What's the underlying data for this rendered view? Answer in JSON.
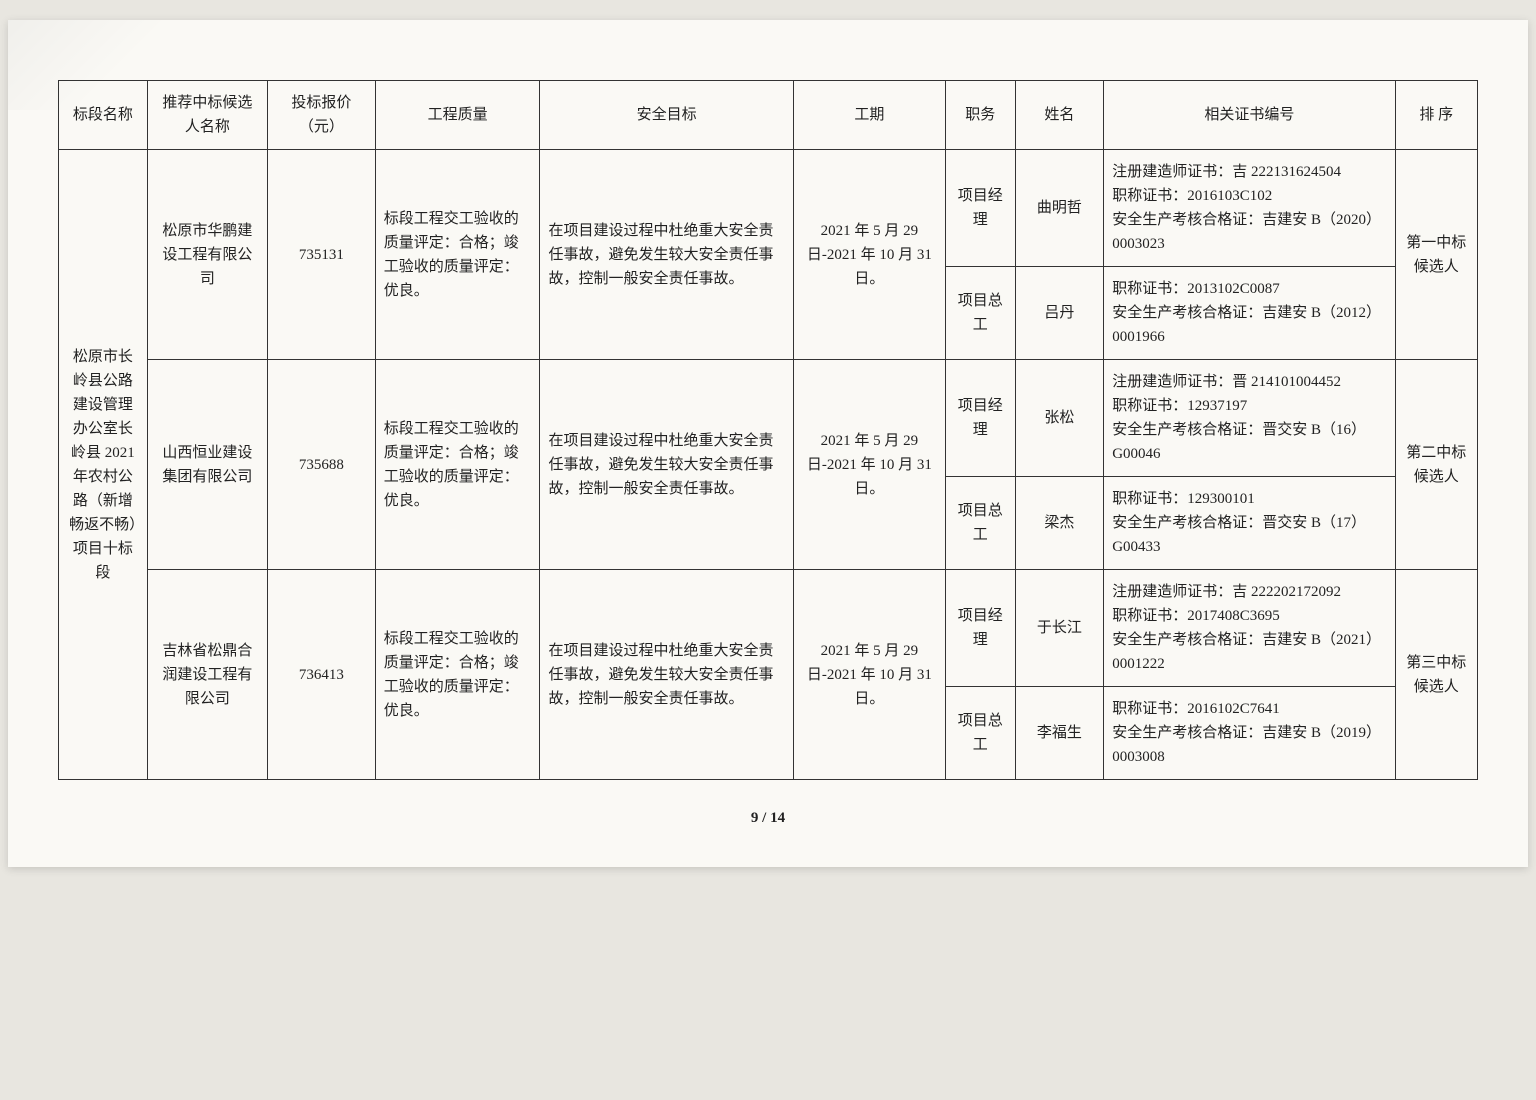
{
  "headers": {
    "section": "标段名称",
    "candidate": "推荐中标候选人名称",
    "price": "投标报价（元）",
    "quality": "工程质量",
    "safety": "安全目标",
    "period": "工期",
    "role": "职务",
    "name": "姓名",
    "cert": "相关证书编号",
    "rank": "排 序"
  },
  "section_name": "松原市长岭县公路建设管理办公室长岭县 2021 年农村公路（新增畅返不畅）项目十标段",
  "quality_text": "标段工程交工验收的质量评定：合格；竣工验收的质量评定：优良。",
  "safety_text": "在项目建设过程中杜绝重大安全责任事故，避免发生较大安全责任事故，控制一般安全责任事故。",
  "period_text": "2021 年 5 月 29 日-2021 年 10 月 31 日。",
  "role_pm": "项目经理",
  "role_ce": "项目总工",
  "candidates": [
    {
      "company": "松原市华鹏建设工程有限公司",
      "price": "735131",
      "pm_name": "曲明哲",
      "pm_cert": "注册建造师证书：吉 222131624504\n职称证书：2016103C102\n安全生产考核合格证：吉建安 B（2020）0003023",
      "ce_name": "吕丹",
      "ce_cert": "职称证书：2013102C0087\n安全生产考核合格证：吉建安 B（2012）0001966",
      "rank": "第一中标候选人"
    },
    {
      "company": "山西恒业建设集团有限公司",
      "price": "735688",
      "pm_name": "张松",
      "pm_cert": "注册建造师证书：晋 214101004452\n职称证书：12937197\n安全生产考核合格证：晋交安 B（16）G00046",
      "ce_name": "梁杰",
      "ce_cert": "职称证书：129300101\n安全生产考核合格证：晋交安 B（17）G00433",
      "rank": "第二中标候选人"
    },
    {
      "company": "吉林省松鼎合润建设工程有限公司",
      "price": "736413",
      "pm_name": "于长江",
      "pm_cert": "注册建造师证书：吉 222202172092\n职称证书：2017408C3695\n安全生产考核合格证：吉建安 B（2021）0001222",
      "ce_name": "李福生",
      "ce_cert": "职称证书：2016102C7641\n安全生产考核合格证：吉建安 B（2019）0003008",
      "rank": "第三中标候选人"
    }
  ],
  "page_number": "9 / 14"
}
